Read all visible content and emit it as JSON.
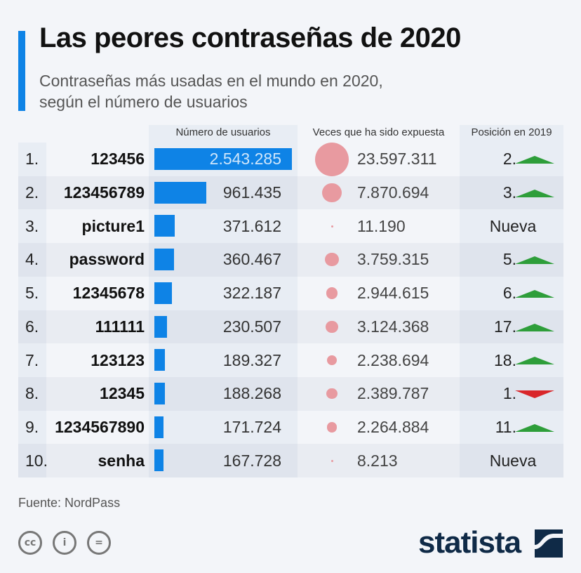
{
  "title": "Las peores contraseñas de 2020",
  "subtitle_line1": "Contraseñas más usadas en el mundo en 2020,",
  "subtitle_line2": "según el número de usuarios",
  "source": "Fuente: NordPass",
  "logo_text": "statista",
  "colors": {
    "accent": "#0e83e6",
    "bubble": "#e89aa0",
    "up": "#2e9e3a",
    "down": "#d9262a",
    "logo": "#0f2a47"
  },
  "chart_data": {
    "type": "table",
    "columns": [
      "Número de usuarios",
      "Veces que ha sido expuesta",
      "Posición en 2019"
    ],
    "rows": [
      {
        "rank": "1.",
        "password": "123456",
        "users": 2543285,
        "users_label": "2.543.285",
        "exposed": 23597311,
        "exposed_label": "23.597.311",
        "pos2019": "2.",
        "trend": "up"
      },
      {
        "rank": "2.",
        "password": "123456789",
        "users": 961435,
        "users_label": "961.435",
        "exposed": 7870694,
        "exposed_label": "7.870.694",
        "pos2019": "3.",
        "trend": "up"
      },
      {
        "rank": "3.",
        "password": "picture1",
        "users": 371612,
        "users_label": "371.612",
        "exposed": 11190,
        "exposed_label": "11.190",
        "pos2019": "Nueva",
        "trend": "new"
      },
      {
        "rank": "4.",
        "password": "password",
        "users": 360467,
        "users_label": "360.467",
        "exposed": 3759315,
        "exposed_label": "3.759.315",
        "pos2019": "5.",
        "trend": "up"
      },
      {
        "rank": "5.",
        "password": "12345678",
        "users": 322187,
        "users_label": "322.187",
        "exposed": 2944615,
        "exposed_label": "2.944.615",
        "pos2019": "6.",
        "trend": "up"
      },
      {
        "rank": "6.",
        "password": "111111",
        "users": 230507,
        "users_label": "230.507",
        "exposed": 3124368,
        "exposed_label": "3.124.368",
        "pos2019": "17.",
        "trend": "up"
      },
      {
        "rank": "7.",
        "password": "123123",
        "users": 189327,
        "users_label": "189.327",
        "exposed": 2238694,
        "exposed_label": "2.238.694",
        "pos2019": "18.",
        "trend": "up"
      },
      {
        "rank": "8.",
        "password": "12345",
        "users": 188268,
        "users_label": "188.268",
        "exposed": 2389787,
        "exposed_label": "2.389.787",
        "pos2019": "1.",
        "trend": "down"
      },
      {
        "rank": "9.",
        "password": "1234567890",
        "users": 171724,
        "users_label": "171.724",
        "exposed": 2264884,
        "exposed_label": "2.264.884",
        "pos2019": "11.",
        "trend": "up"
      },
      {
        "rank": "10.",
        "password": "senha",
        "users": 167728,
        "users_label": "167.728",
        "exposed": 8213,
        "exposed_label": "8.213",
        "pos2019": "Nueva",
        "trend": "new"
      }
    ]
  }
}
